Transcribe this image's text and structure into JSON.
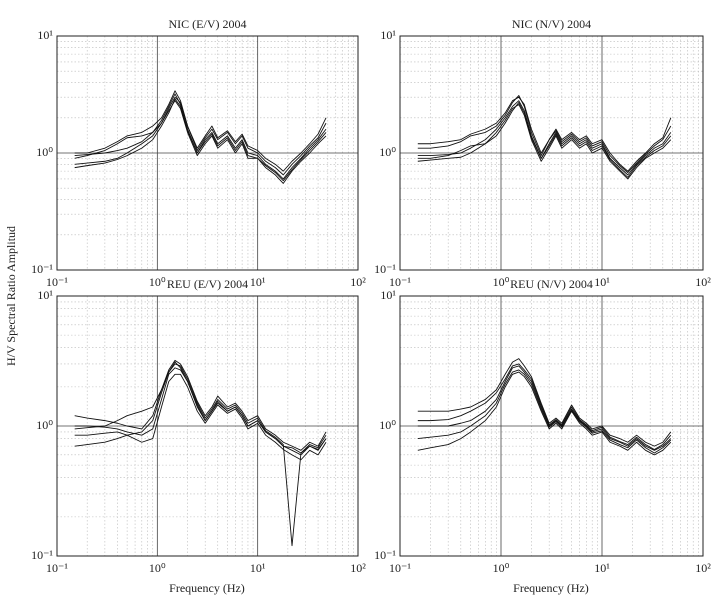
{
  "ylabel": "H/V Spectral Ratio Amplitud",
  "xlabel": "Frequency (Hz)",
  "chart_data": [
    {
      "type": "line",
      "title": "NIC (E/V) 2004",
      "log_x": true,
      "log_y": true,
      "grid": true,
      "minor_grid": true,
      "xlim": [
        0.1,
        100
      ],
      "ylim": [
        0.1,
        10
      ],
      "xticks": [
        {
          "value": 0.1,
          "label": "10⁻¹"
        },
        {
          "value": 1,
          "label": "10⁰"
        },
        {
          "value": 10,
          "label": "10¹"
        },
        {
          "value": 100,
          "label": "10²"
        }
      ],
      "yticks": [
        {
          "value": 0.1,
          "label": "10⁻¹"
        },
        {
          "value": 1,
          "label": "10⁰"
        },
        {
          "value": 10,
          "label": "10¹"
        }
      ],
      "x": [
        0.15,
        0.2,
        0.3,
        0.4,
        0.5,
        0.7,
        0.9,
        1.1,
        1.3,
        1.5,
        1.7,
        2.0,
        2.5,
        3,
        3.5,
        4,
        5,
        6,
        7,
        8,
        10,
        12,
        15,
        18,
        22,
        27,
        33,
        40,
        48
      ],
      "series": [
        {
          "color": "#111111",
          "values": [
            0.95,
            0.97,
            1.0,
            1.05,
            1.1,
            1.25,
            1.5,
            1.9,
            2.5,
            3.2,
            2.6,
            1.6,
            1.0,
            1.3,
            1.5,
            1.2,
            1.4,
            1.1,
            1.3,
            1.0,
            0.95,
            0.8,
            0.7,
            0.6,
            0.75,
            0.9,
            1.1,
            1.3,
            1.6
          ]
        },
        {
          "color": "#111111",
          "values": [
            0.8,
            0.82,
            0.85,
            0.9,
            1.0,
            1.2,
            1.4,
            1.8,
            2.3,
            2.8,
            2.4,
            1.5,
            0.95,
            1.2,
            1.4,
            1.1,
            1.3,
            1.0,
            1.2,
            0.9,
            0.9,
            0.75,
            0.65,
            0.55,
            0.7,
            0.85,
            1.0,
            1.2,
            1.4
          ]
        },
        {
          "color": "#111111",
          "values": [
            0.9,
            0.95,
            1.05,
            1.2,
            1.35,
            1.4,
            1.5,
            1.8,
            2.4,
            3.0,
            2.7,
            1.7,
            1.05,
            1.35,
            1.6,
            1.3,
            1.5,
            1.2,
            1.4,
            1.1,
            1.0,
            0.85,
            0.75,
            0.65,
            0.8,
            0.95,
            1.15,
            1.35,
            1.8
          ]
        },
        {
          "color": "#111111",
          "values": [
            0.75,
            0.78,
            0.82,
            0.88,
            0.95,
            1.1,
            1.3,
            1.7,
            2.2,
            2.9,
            2.5,
            1.55,
            1.0,
            1.25,
            1.45,
            1.15,
            1.35,
            1.05,
            1.25,
            0.95,
            0.9,
            0.78,
            0.68,
            0.58,
            0.72,
            0.88,
            1.05,
            1.25,
            1.5
          ]
        },
        {
          "color": "#111111",
          "values": [
            1.0,
            1.0,
            1.1,
            1.25,
            1.4,
            1.5,
            1.7,
            2.0,
            2.6,
            3.4,
            2.8,
            1.7,
            1.1,
            1.4,
            1.7,
            1.35,
            1.55,
            1.25,
            1.45,
            1.15,
            1.05,
            0.9,
            0.8,
            0.7,
            0.85,
            1.0,
            1.2,
            1.45,
            2.0
          ]
        }
      ]
    },
    {
      "type": "line",
      "title": "NIC (N/V) 2004",
      "log_x": true,
      "log_y": true,
      "grid": true,
      "minor_grid": true,
      "xlim": [
        0.1,
        100
      ],
      "ylim": [
        0.1,
        10
      ],
      "xticks": [
        {
          "value": 0.1,
          "label": "10⁻¹"
        },
        {
          "value": 1,
          "label": "10⁰"
        },
        {
          "value": 10,
          "label": "10¹"
        },
        {
          "value": 100,
          "label": "10²"
        }
      ],
      "yticks": [
        {
          "value": 0.1,
          "label": "10⁻¹"
        },
        {
          "value": 1,
          "label": "10⁰"
        },
        {
          "value": 10,
          "label": "10¹"
        }
      ],
      "x": [
        0.15,
        0.2,
        0.3,
        0.4,
        0.5,
        0.7,
        0.9,
        1.1,
        1.3,
        1.5,
        1.7,
        2.0,
        2.5,
        3,
        3.5,
        4,
        5,
        6,
        7,
        8,
        10,
        12,
        15,
        18,
        22,
        27,
        33,
        40,
        48
      ],
      "series": [
        {
          "color": "#111111",
          "values": [
            0.95,
            0.95,
            0.97,
            1.0,
            1.1,
            1.3,
            1.6,
            2.0,
            2.5,
            2.8,
            2.3,
            1.4,
            0.9,
            1.2,
            1.5,
            1.2,
            1.4,
            1.2,
            1.3,
            1.1,
            1.2,
            0.9,
            0.75,
            0.65,
            0.8,
            0.95,
            1.1,
            1.2,
            1.5
          ]
        },
        {
          "color": "#111111",
          "values": [
            0.85,
            0.87,
            0.9,
            0.92,
            1.0,
            1.2,
            1.5,
            1.9,
            2.4,
            2.6,
            2.1,
            1.3,
            0.85,
            1.1,
            1.4,
            1.1,
            1.3,
            1.1,
            1.2,
            1.0,
            1.1,
            0.85,
            0.7,
            0.6,
            0.75,
            0.9,
            1.0,
            1.1,
            1.3
          ]
        },
        {
          "color": "#111111",
          "values": [
            1.1,
            1.1,
            1.15,
            1.25,
            1.4,
            1.5,
            1.7,
            2.1,
            2.7,
            3.1,
            2.5,
            1.5,
            0.95,
            1.3,
            1.6,
            1.3,
            1.5,
            1.3,
            1.4,
            1.2,
            1.3,
            1.0,
            0.8,
            0.7,
            0.85,
            1.0,
            1.2,
            1.35,
            2.0
          ]
        },
        {
          "color": "#111111",
          "values": [
            0.9,
            0.9,
            0.95,
            1.05,
            1.15,
            1.2,
            1.4,
            1.8,
            2.3,
            2.7,
            2.2,
            1.35,
            0.9,
            1.15,
            1.45,
            1.15,
            1.35,
            1.15,
            1.25,
            1.05,
            1.15,
            0.88,
            0.72,
            0.62,
            0.78,
            0.92,
            1.05,
            1.15,
            1.4
          ]
        },
        {
          "color": "#111111",
          "values": [
            1.2,
            1.2,
            1.25,
            1.3,
            1.45,
            1.6,
            1.8,
            2.2,
            2.8,
            3.0,
            2.6,
            1.6,
            1.0,
            1.3,
            1.55,
            1.25,
            1.45,
            1.25,
            1.35,
            1.15,
            1.25,
            0.95,
            0.78,
            0.68,
            0.82,
            0.98,
            1.15,
            1.3,
            1.7
          ]
        }
      ]
    },
    {
      "type": "line",
      "title": "REU (E/V) 2004",
      "log_x": true,
      "log_y": true,
      "grid": true,
      "minor_grid": true,
      "xlim": [
        0.1,
        100
      ],
      "ylim": [
        0.1,
        10
      ],
      "xticks": [
        {
          "value": 0.1,
          "label": "10⁻¹"
        },
        {
          "value": 1,
          "label": "10⁰"
        },
        {
          "value": 10,
          "label": "10¹"
        },
        {
          "value": 100,
          "label": "10²"
        }
      ],
      "yticks": [
        {
          "value": 0.1,
          "label": "10⁻¹"
        },
        {
          "value": 1,
          "label": "10⁰"
        },
        {
          "value": 10,
          "label": "10¹"
        }
      ],
      "x": [
        0.15,
        0.2,
        0.3,
        0.4,
        0.5,
        0.7,
        0.9,
        1.1,
        1.3,
        1.5,
        1.7,
        2.0,
        2.5,
        3,
        3.5,
        4,
        5,
        6,
        7,
        8,
        10,
        12,
        15,
        18,
        22,
        27,
        33,
        40,
        48
      ],
      "series": [
        {
          "color": "#111111",
          "values": [
            1.0,
            1.0,
            0.98,
            0.95,
            0.9,
            0.85,
            0.95,
            1.6,
            2.5,
            2.8,
            2.7,
            2.2,
            1.4,
            1.1,
            1.3,
            1.5,
            1.3,
            1.4,
            1.2,
            1.0,
            1.1,
            0.9,
            0.8,
            0.7,
            0.65,
            0.6,
            0.7,
            0.65,
            0.8
          ]
        },
        {
          "color": "#111111",
          "values": [
            0.7,
            0.72,
            0.75,
            0.8,
            0.85,
            0.9,
            1.1,
            1.8,
            2.6,
            3.0,
            2.9,
            2.3,
            1.5,
            1.15,
            1.35,
            1.6,
            1.35,
            1.45,
            1.25,
            1.05,
            1.15,
            0.92,
            0.82,
            0.72,
            0.12,
            0.62,
            0.72,
            0.68,
            0.85
          ]
        },
        {
          "color": "#111111",
          "values": [
            1.2,
            1.15,
            1.1,
            1.05,
            1.0,
            0.95,
            1.2,
            1.9,
            2.7,
            3.2,
            3.0,
            2.4,
            1.55,
            1.2,
            1.4,
            1.7,
            1.4,
            1.5,
            1.3,
            1.1,
            1.2,
            0.95,
            0.85,
            0.75,
            0.7,
            0.65,
            0.75,
            0.7,
            0.9
          ]
        },
        {
          "color": "#111111",
          "values": [
            0.85,
            0.85,
            0.88,
            0.9,
            0.85,
            0.75,
            0.8,
            1.4,
            2.2,
            2.5,
            2.5,
            2.0,
            1.3,
            1.05,
            1.25,
            1.45,
            1.25,
            1.35,
            1.15,
            0.95,
            1.05,
            0.85,
            0.75,
            0.66,
            0.6,
            0.55,
            0.65,
            0.6,
            0.75
          ]
        },
        {
          "color": "#111111",
          "values": [
            0.95,
            0.97,
            1.0,
            1.1,
            1.2,
            1.3,
            1.4,
            1.9,
            2.6,
            3.1,
            2.8,
            2.2,
            1.45,
            1.1,
            1.3,
            1.55,
            1.3,
            1.4,
            1.2,
            1.0,
            1.1,
            0.9,
            0.8,
            0.7,
            0.68,
            0.62,
            0.7,
            0.66,
            0.8
          ]
        }
      ]
    },
    {
      "type": "line",
      "title": "REU (N/V) 2004",
      "log_x": true,
      "log_y": true,
      "grid": true,
      "minor_grid": true,
      "xlim": [
        0.1,
        100
      ],
      "ylim": [
        0.1,
        10
      ],
      "xticks": [
        {
          "value": 0.1,
          "label": "10⁻¹"
        },
        {
          "value": 1,
          "label": "10⁰"
        },
        {
          "value": 10,
          "label": "10¹"
        },
        {
          "value": 100,
          "label": "10²"
        }
      ],
      "yticks": [
        {
          "value": 0.1,
          "label": "10⁻¹"
        },
        {
          "value": 1,
          "label": "10⁰"
        },
        {
          "value": 10,
          "label": "10¹"
        }
      ],
      "x": [
        0.15,
        0.2,
        0.3,
        0.4,
        0.5,
        0.7,
        0.9,
        1.1,
        1.3,
        1.5,
        1.7,
        2.0,
        2.5,
        3,
        3.5,
        4,
        5,
        6,
        7,
        8,
        10,
        12,
        15,
        18,
        22,
        27,
        33,
        40,
        48
      ],
      "series": [
        {
          "color": "#111111",
          "values": [
            1.0,
            1.0,
            1.0,
            1.05,
            1.1,
            1.3,
            1.6,
            2.2,
            2.8,
            2.9,
            2.6,
            2.2,
            1.4,
            1.0,
            1.1,
            1.0,
            1.35,
            1.1,
            1.0,
            0.9,
            0.95,
            0.8,
            0.75,
            0.7,
            0.8,
            0.7,
            0.65,
            0.7,
            0.8
          ]
        },
        {
          "color": "#111111",
          "values": [
            0.65,
            0.68,
            0.72,
            0.8,
            0.9,
            1.1,
            1.4,
            2.0,
            2.5,
            2.6,
            2.4,
            2.0,
            1.3,
            0.95,
            1.05,
            0.95,
            1.3,
            1.05,
            0.95,
            0.85,
            0.9,
            0.75,
            0.7,
            0.65,
            0.75,
            0.65,
            0.6,
            0.65,
            0.75
          ]
        },
        {
          "color": "#111111",
          "values": [
            1.3,
            1.3,
            1.3,
            1.35,
            1.4,
            1.6,
            1.9,
            2.5,
            3.1,
            3.3,
            2.9,
            2.4,
            1.5,
            1.05,
            1.15,
            1.05,
            1.45,
            1.15,
            1.05,
            0.95,
            1.0,
            0.85,
            0.8,
            0.75,
            0.85,
            0.75,
            0.7,
            0.75,
            0.9
          ]
        },
        {
          "color": "#111111",
          "values": [
            0.8,
            0.82,
            0.85,
            0.9,
            1.0,
            1.2,
            1.5,
            2.1,
            2.6,
            2.7,
            2.5,
            2.1,
            1.35,
            0.98,
            1.08,
            0.98,
            1.32,
            1.08,
            0.98,
            0.88,
            0.92,
            0.78,
            0.72,
            0.68,
            0.78,
            0.68,
            0.62,
            0.68,
            0.78
          ]
        },
        {
          "color": "#111111",
          "values": [
            1.1,
            1.1,
            1.12,
            1.2,
            1.3,
            1.5,
            1.8,
            2.3,
            2.9,
            3.0,
            2.7,
            2.3,
            1.45,
            1.02,
            1.12,
            1.02,
            1.4,
            1.12,
            1.02,
            0.92,
            0.98,
            0.82,
            0.76,
            0.72,
            0.82,
            0.72,
            0.66,
            0.72,
            0.85
          ]
        }
      ]
    }
  ]
}
